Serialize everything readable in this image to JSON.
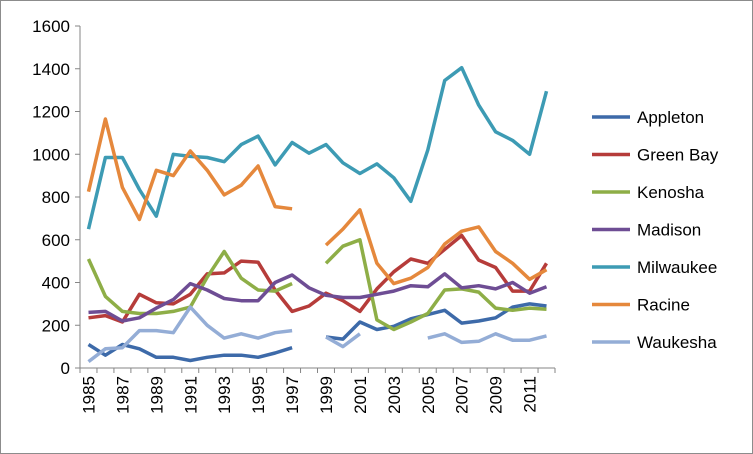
{
  "chart_data": {
    "type": "line",
    "title": "",
    "xlabel": "",
    "ylabel": "",
    "x": [
      1985,
      1986,
      1987,
      1988,
      1989,
      1990,
      1991,
      1992,
      1993,
      1994,
      1995,
      1996,
      1997,
      1998,
      1999,
      2000,
      2001,
      2002,
      2003,
      2004,
      2005,
      2006,
      2007,
      2008,
      2009,
      2010,
      2011,
      2012
    ],
    "x_tick_labels": [
      "1985",
      "1987",
      "1989",
      "1991",
      "1993",
      "1995",
      "1997",
      "1999",
      "2001",
      "2003",
      "2005",
      "2007",
      "2009",
      "2011"
    ],
    "ylim": [
      0,
      1600
    ],
    "y_ticks": [
      "0",
      "200",
      "400",
      "600",
      "800",
      "1000",
      "1200",
      "1400",
      "1600"
    ],
    "grid": false,
    "legend_position": "right",
    "series": [
      {
        "name": "Appleton",
        "color": "#3D6AA9",
        "values": [
          110,
          60,
          110,
          90,
          50,
          50,
          35,
          50,
          60,
          60,
          50,
          70,
          95,
          null,
          145,
          135,
          215,
          180,
          195,
          230,
          250,
          270,
          210,
          220,
          235,
          285,
          300,
          290
        ]
      },
      {
        "name": "Green Bay",
        "color": "#B63C3A",
        "values": [
          235,
          245,
          215,
          345,
          305,
          300,
          345,
          440,
          445,
          500,
          495,
          365,
          265,
          290,
          350,
          315,
          265,
          370,
          450,
          510,
          490,
          555,
          620,
          505,
          470,
          360,
          360,
          490
        ]
      },
      {
        "name": "Kenosha",
        "color": "#8EAE47",
        "values": [
          510,
          335,
          265,
          255,
          255,
          265,
          285,
          425,
          545,
          420,
          365,
          360,
          395,
          null,
          490,
          570,
          600,
          225,
          180,
          215,
          255,
          365,
          370,
          355,
          280,
          270,
          280,
          275
        ]
      },
      {
        "name": "Madison",
        "color": "#6E4D94",
        "values": [
          260,
          265,
          220,
          235,
          280,
          320,
          395,
          365,
          325,
          315,
          315,
          400,
          435,
          375,
          340,
          330,
          330,
          345,
          360,
          385,
          380,
          440,
          375,
          385,
          370,
          400,
          350,
          380
        ]
      },
      {
        "name": "Milwaukee",
        "color": "#3D9BB4",
        "values": [
          650,
          985,
          985,
          835,
          710,
          1000,
          990,
          985,
          965,
          1045,
          1085,
          950,
          1055,
          1005,
          1045,
          960,
          910,
          955,
          890,
          780,
          1020,
          1345,
          1405,
          1230,
          1105,
          1065,
          1000,
          1295
        ]
      },
      {
        "name": "Racine",
        "color": "#E5883C",
        "values": [
          825,
          1165,
          845,
          695,
          925,
          900,
          1015,
          925,
          810,
          855,
          945,
          755,
          745,
          null,
          575,
          650,
          740,
          490,
          395,
          420,
          470,
          580,
          640,
          660,
          545,
          490,
          415,
          460
        ]
      },
      {
        "name": "Waukesha",
        "color": "#94ADD6",
        "values": [
          30,
          90,
          95,
          175,
          175,
          165,
          285,
          200,
          140,
          160,
          140,
          165,
          175,
          null,
          145,
          100,
          160,
          null,
          null,
          null,
          140,
          160,
          120,
          125,
          160,
          130,
          130,
          150
        ]
      }
    ]
  }
}
